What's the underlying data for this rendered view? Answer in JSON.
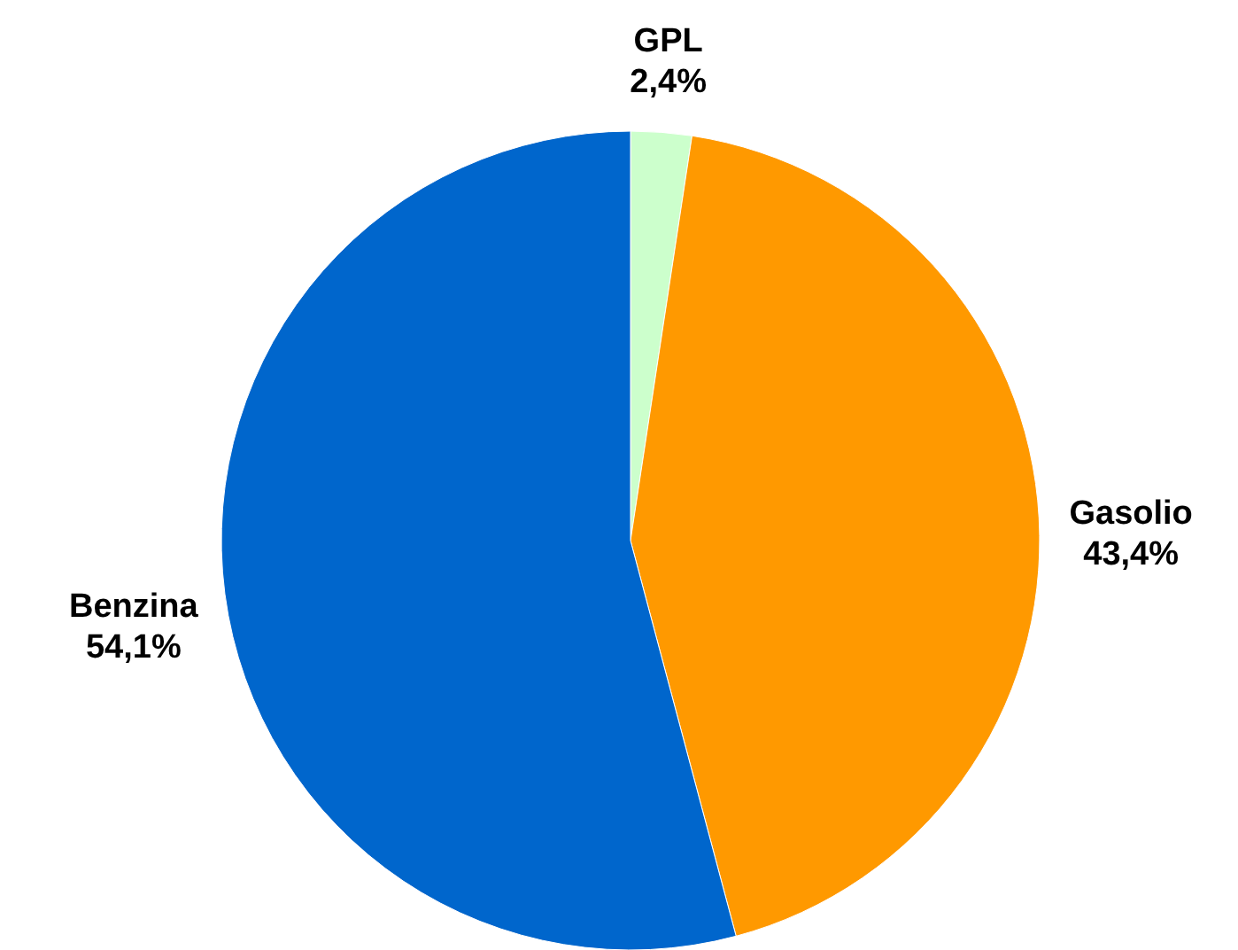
{
  "chart_data": {
    "type": "pie",
    "categories": [
      "GPL",
      "Gasolio",
      "Benzina"
    ],
    "values": [
      2.4,
      43.4,
      54.1
    ],
    "value_labels": [
      "2,4%",
      "43,4%",
      "54,1%"
    ],
    "colors": [
      "#ccffcc",
      "#ff9900",
      "#0066cc"
    ],
    "legend": false
  }
}
